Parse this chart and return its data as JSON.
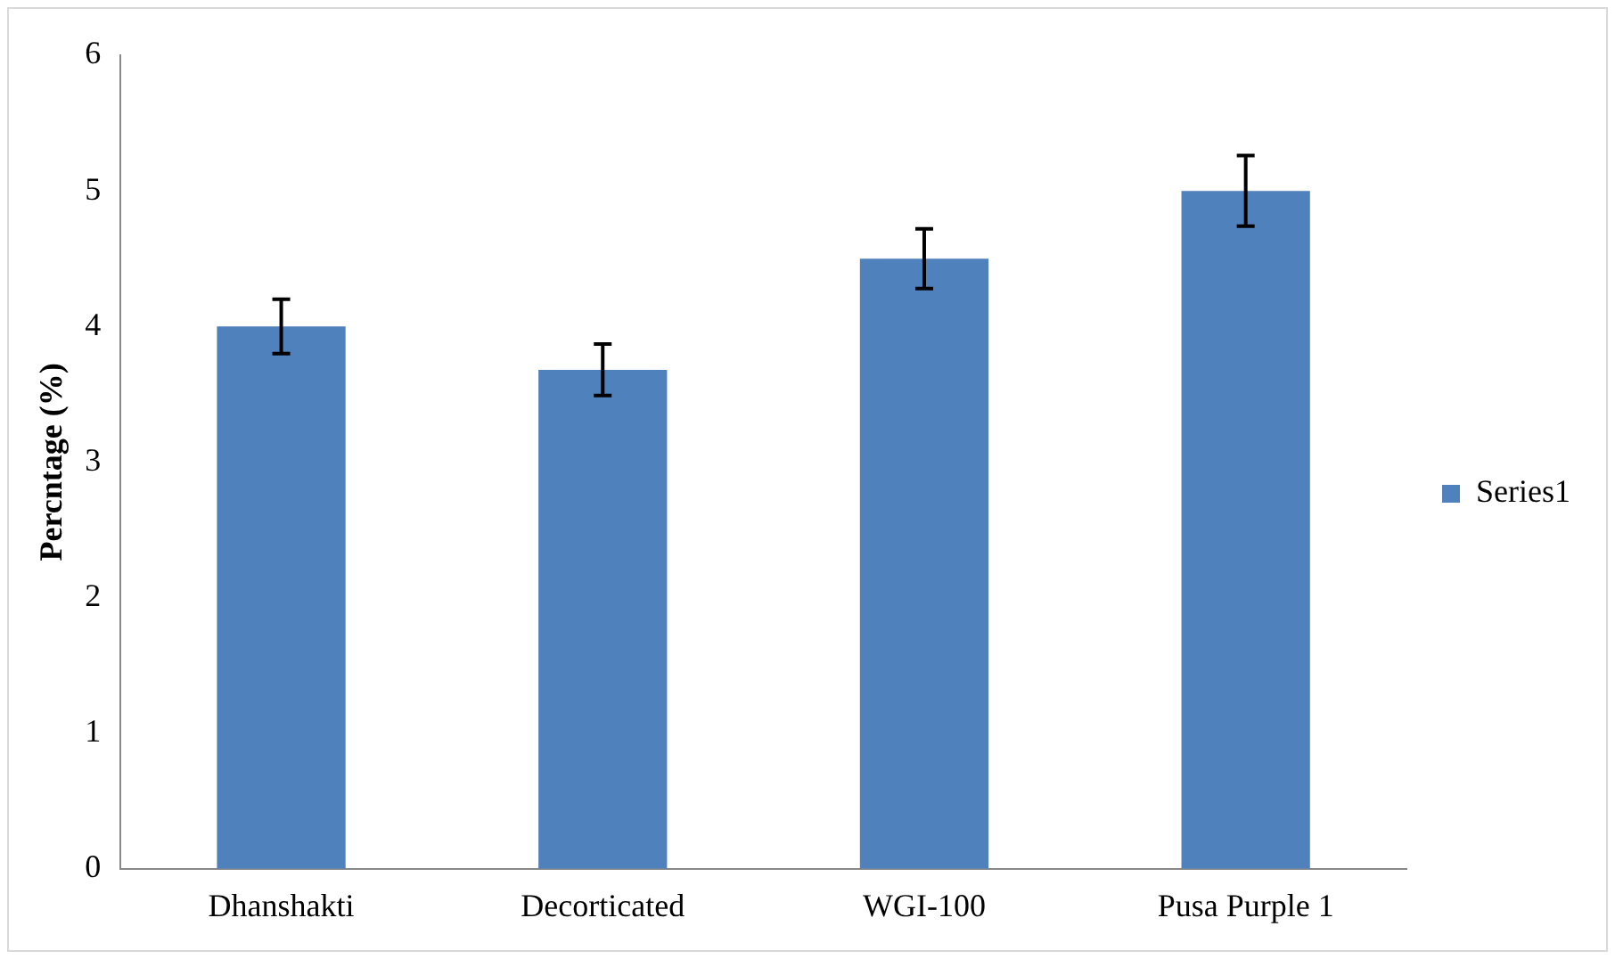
{
  "chart_data": {
    "type": "bar",
    "ylabel": "Percntage (%)",
    "categories": [
      "Dhanshakti",
      "Decorticated",
      "WGI-100",
      "Pusa Purple 1"
    ],
    "series": [
      {
        "name": "Series1",
        "color": "#4f81bd",
        "values": [
          4.0,
          3.68,
          4.5,
          5.0
        ],
        "errors": [
          0.2,
          0.19,
          0.22,
          0.26
        ]
      }
    ],
    "ylim": [
      0,
      6
    ],
    "yticks": [
      0,
      1,
      2,
      3,
      4,
      5,
      6
    ],
    "grid": false,
    "legend": "right"
  }
}
